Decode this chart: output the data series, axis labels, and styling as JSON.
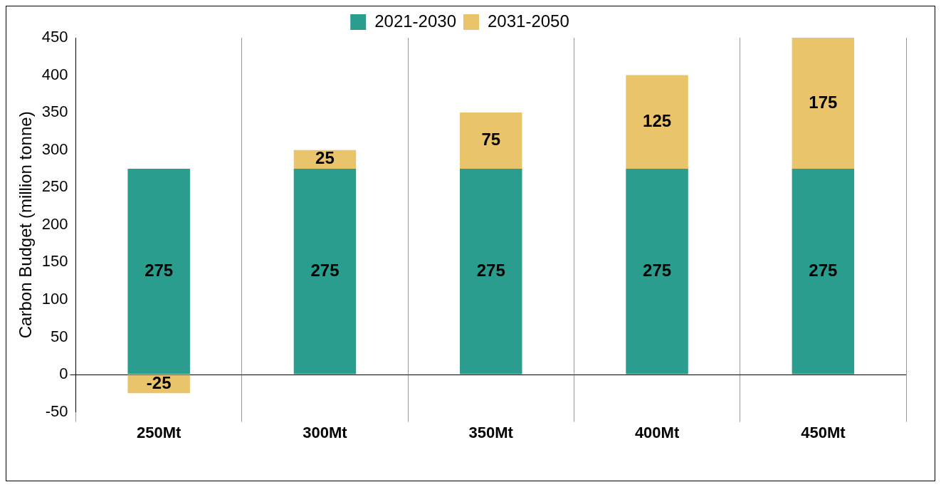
{
  "chart_data": {
    "type": "bar",
    "stacked": true,
    "ylabel": "Carbon Budget (million tonne)",
    "categories": [
      "250Mt",
      "300Mt",
      "350Mt",
      "400Mt",
      "450Mt"
    ],
    "series": [
      {
        "name": "2021-2030",
        "color": "#2a9d8f",
        "values": [
          275,
          275,
          275,
          275,
          275
        ]
      },
      {
        "name": "2031-2050",
        "color": "#e9c46a",
        "values": [
          -25,
          25,
          75,
          125,
          175
        ]
      }
    ],
    "ylim": [
      -50,
      450
    ],
    "yticks": [
      -50,
      0,
      50,
      100,
      150,
      200,
      250,
      300,
      350,
      400,
      450
    ],
    "grid": "x",
    "legend": "top",
    "data_labels": true
  }
}
